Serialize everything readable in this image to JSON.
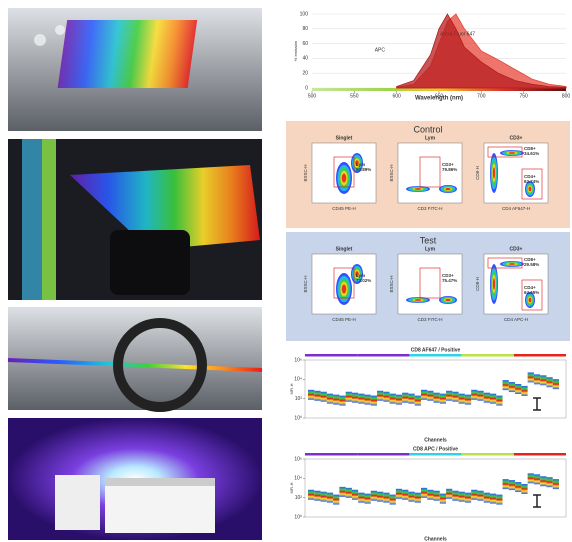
{
  "chart_data": [
    {
      "type": "area",
      "x_label": "Wavelength (nm)",
      "y_label": "% emission",
      "xlim": [
        500,
        800
      ],
      "xticks": [
        500,
        550,
        600,
        650,
        700,
        750,
        800
      ],
      "ylim": [
        0,
        100
      ],
      "yticks": [
        0,
        20,
        40,
        60,
        80,
        100
      ],
      "series": [
        {
          "name": "Alexa Fluor 647",
          "color": "#e8473a",
          "x": [
            600,
            620,
            640,
            650,
            660,
            670,
            680,
            700,
            720,
            740,
            760,
            780,
            800
          ],
          "values": [
            1,
            5,
            30,
            60,
            90,
            100,
            80,
            50,
            38,
            25,
            12,
            5,
            2
          ]
        },
        {
          "name": "APC",
          "color": "#b51d1d",
          "x": [
            600,
            620,
            640,
            650,
            660,
            670,
            680,
            700,
            720,
            740,
            760,
            780,
            800
          ],
          "values": [
            2,
            10,
            45,
            80,
            100,
            80,
            55,
            35,
            20,
            10,
            5,
            2,
            1
          ]
        }
      ]
    },
    {
      "type": "signature",
      "title": "CD8 AF647 / Positive",
      "x_label": "Channels",
      "y_label": "MFI-H",
      "ylim": [
        0,
        6
      ],
      "yticks": [
        {
          "value": 0,
          "label": "10⁰"
        },
        {
          "value": 2,
          "label": "10²"
        },
        {
          "value": 4,
          "label": "10⁴"
        },
        {
          "value": 6,
          "label": "10⁶"
        }
      ],
      "values": [
        2.4,
        2.3,
        2.2,
        2.0,
        1.9,
        1.8,
        2.2,
        2.1,
        2.0,
        1.9,
        1.8,
        2.3,
        2.2,
        2.0,
        1.9,
        2.1,
        2.0,
        1.8,
        2.4,
        2.3,
        2.1,
        2.0,
        2.3,
        2.2,
        2.0,
        1.9,
        2.4,
        2.3,
        2.1,
        2.0,
        1.8,
        3.4,
        3.2,
        3.0,
        2.8,
        4.2,
        4.0,
        3.9,
        3.7,
        3.5
      ]
    },
    {
      "type": "signature",
      "title": "CD8 APC / Positive",
      "x_label": "Channels",
      "y_label": "MFI-H",
      "ylim": [
        0,
        6
      ],
      "yticks": [
        {
          "value": 0,
          "label": "10⁰"
        },
        {
          "value": 2,
          "label": "10²"
        },
        {
          "value": 4,
          "label": "10⁴"
        },
        {
          "value": 6,
          "label": "10⁶"
        }
      ],
      "values": [
        2.3,
        2.2,
        2.1,
        2.0,
        1.8,
        2.6,
        2.5,
        2.3,
        2.0,
        1.9,
        2.2,
        2.1,
        2.0,
        1.8,
        2.4,
        2.3,
        2.1,
        2.0,
        2.5,
        2.3,
        2.2,
        1.9,
        2.4,
        2.2,
        2.1,
        2.0,
        2.3,
        2.2,
        2.0,
        1.9,
        1.8,
        3.4,
        3.3,
        3.1,
        2.9,
        4.0,
        3.9,
        3.7,
        3.6,
        3.4
      ]
    }
  ],
  "flow": [
    {
      "title": "Control",
      "plots": [
        {
          "title": "Singlet",
          "x_label": "CD45 PE-H",
          "y_label": "BSSC-H",
          "gates": [
            {
              "name": "Lym",
              "percent": "50.89%"
            }
          ]
        },
        {
          "title": "Lym",
          "x_label": "CD3 FITC-H",
          "y_label": "BSSC-H",
          "gates": [
            {
              "name": "CD3+",
              "percent": "79.86%"
            }
          ]
        },
        {
          "title": "CD3+",
          "x_label": "CD4 AF647-H",
          "y_label": "CD8-H",
          "gates": [
            {
              "name": "CD8+",
              "percent": "34.61%"
            },
            {
              "name": "CD4+",
              "percent": "62.74%"
            }
          ]
        }
      ]
    },
    {
      "title": "Test",
      "plots": [
        {
          "title": "Singlet",
          "x_label": "CD45 PE-H",
          "y_label": "BSSC-H",
          "gates": [
            {
              "name": "Lym",
              "percent": "73.02%"
            }
          ]
        },
        {
          "title": "Lym",
          "x_label": "CD3 FITC-H",
          "y_label": "BSSC-H",
          "gates": [
            {
              "name": "CD3+",
              "percent": "75.47%"
            }
          ]
        },
        {
          "title": "CD3+",
          "x_label": "CD4 APC-H",
          "y_label": "CD8-H",
          "gates": [
            {
              "name": "CD8+",
              "percent": "29.58%"
            },
            {
              "name": "CD4+",
              "percent": "64.65%"
            }
          ]
        }
      ]
    }
  ]
}
